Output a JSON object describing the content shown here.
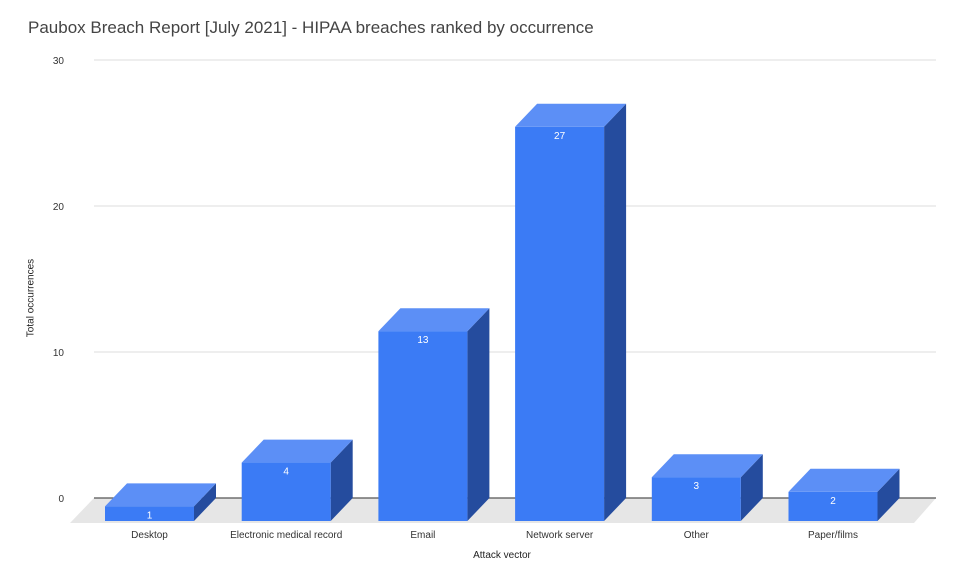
{
  "chart_data": {
    "type": "bar",
    "title": "Paubox Breach Report [July 2021] - HIPAA breaches ranked by occurrence",
    "xlabel": "Attack vector",
    "ylabel": "Total occurrences",
    "categories": [
      "Desktop",
      "Electronic medical record",
      "Email",
      "Network server",
      "Other",
      "Paper/films"
    ],
    "values": [
      1,
      4,
      13,
      27,
      3,
      2
    ],
    "ylim": [
      0,
      30
    ],
    "yticks": [
      0,
      10,
      20,
      30
    ],
    "grid": true,
    "legend": "none",
    "three_d": true,
    "colors": {
      "front": "#3b7bf5",
      "top": "#5c8ff6",
      "side": "#254c9e",
      "floor": "#e6e6e6",
      "grid": "#dddddd"
    }
  }
}
